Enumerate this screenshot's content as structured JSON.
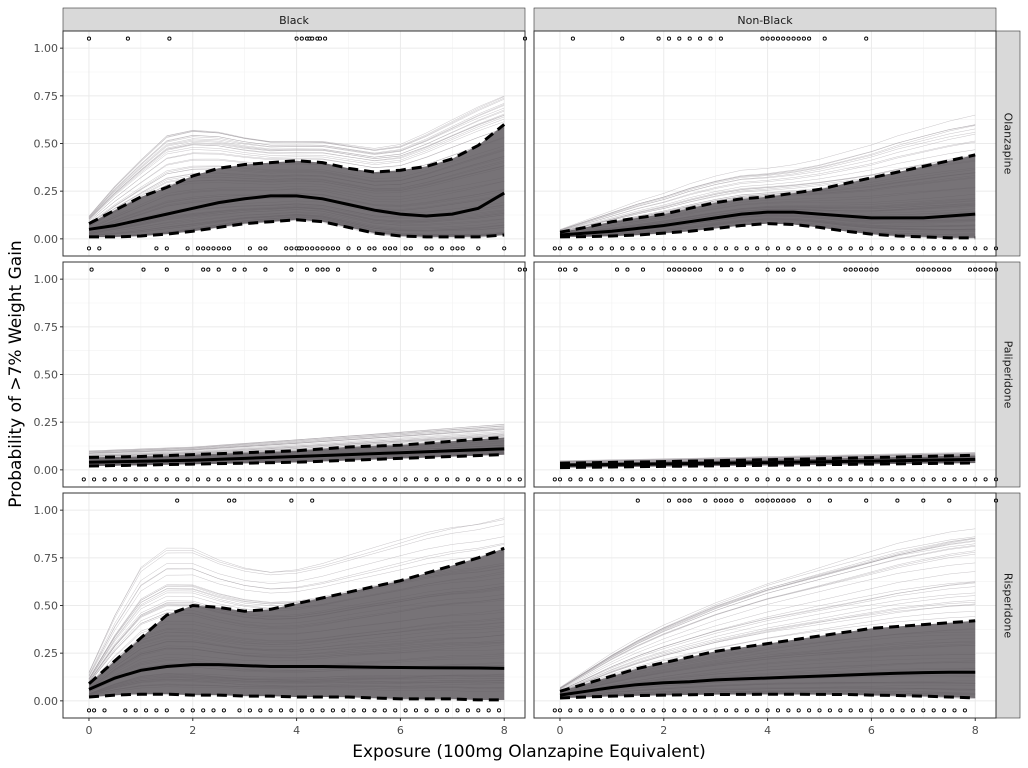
{
  "chart_data": {
    "type": "line",
    "xlabel": "Exposure (100mg Olanzapine Equivalent)",
    "ylabel": "Probability of >7% Weight Gain",
    "xlim": [
      -0.5,
      8.4
    ],
    "ylim": [
      -0.09,
      1.09
    ],
    "x_ticks": [
      0,
      2,
      4,
      6,
      8
    ],
    "y_ticks": [
      0.0,
      0.25,
      0.5,
      0.75,
      1.0
    ],
    "x_tick_labels": [
      "0",
      "2",
      "4",
      "6",
      "8"
    ],
    "y_tick_labels": [
      "0.00",
      "0.25",
      "0.50",
      "0.75",
      "1.00"
    ],
    "columns": [
      "Black",
      "Non-Black"
    ],
    "rows": [
      "Olanzapine",
      "Paliperidone",
      "Risperidone"
    ],
    "grid": true,
    "band_color": "#5f5a5f",
    "line_color": "#000000",
    "panels": [
      {
        "column": "Black",
        "row": "Olanzapine",
        "x": [
          0,
          0.5,
          1,
          1.5,
          2,
          2.5,
          3,
          3.5,
          4,
          4.5,
          5,
          5.5,
          6,
          6.5,
          7,
          7.5,
          8
        ],
        "median": [
          0.05,
          0.07,
          0.1,
          0.13,
          0.16,
          0.19,
          0.21,
          0.225,
          0.225,
          0.21,
          0.18,
          0.15,
          0.13,
          0.12,
          0.13,
          0.16,
          0.24
        ],
        "lower": [
          0.01,
          0.01,
          0.015,
          0.025,
          0.04,
          0.06,
          0.08,
          0.09,
          0.1,
          0.09,
          0.06,
          0.03,
          0.015,
          0.01,
          0.01,
          0.01,
          0.02
        ],
        "upper": [
          0.08,
          0.15,
          0.22,
          0.27,
          0.33,
          0.37,
          0.39,
          0.4,
          0.41,
          0.4,
          0.37,
          0.35,
          0.36,
          0.38,
          0.42,
          0.49,
          0.6
        ],
        "spread_max": [
          0.12,
          0.28,
          0.42,
          0.55,
          0.58,
          0.57,
          0.54,
          0.52,
          0.52,
          0.52,
          0.5,
          0.48,
          0.5,
          0.56,
          0.63,
          0.7,
          0.76
        ],
        "obs_events": [
          0,
          0.75,
          1.55,
          4.0,
          4.1,
          4.2,
          4.25,
          4.3,
          4.4,
          4.45,
          4.55,
          8.4
        ],
        "obs_nonevents": [
          0,
          0.2,
          1.3,
          1.5,
          1.9,
          2.1,
          2.2,
          2.3,
          2.4,
          2.5,
          2.6,
          2.7,
          3.1,
          3.3,
          3.4,
          3.8,
          3.9,
          4.0,
          4.05,
          4.1,
          4.2,
          4.3,
          4.4,
          4.5,
          4.6,
          4.7,
          4.8,
          5.0,
          5.2,
          5.4,
          5.5,
          5.7,
          5.8,
          5.9,
          6.1,
          6.2,
          6.5,
          6.6,
          6.8,
          7.0,
          7.1,
          7.2,
          7.5,
          8.0
        ]
      },
      {
        "column": "Non-Black",
        "row": "Olanzapine",
        "x": [
          0,
          0.5,
          1,
          1.5,
          2,
          2.5,
          3,
          3.5,
          4,
          4.5,
          5,
          5.5,
          6,
          6.5,
          7,
          7.5,
          8
        ],
        "median": [
          0.02,
          0.03,
          0.04,
          0.055,
          0.07,
          0.09,
          0.11,
          0.13,
          0.14,
          0.14,
          0.13,
          0.12,
          0.11,
          0.11,
          0.11,
          0.12,
          0.13
        ],
        "lower": [
          0.01,
          0.012,
          0.015,
          0.02,
          0.03,
          0.04,
          0.055,
          0.07,
          0.08,
          0.075,
          0.06,
          0.04,
          0.025,
          0.015,
          0.01,
          0.005,
          0.005
        ],
        "upper": [
          0.035,
          0.06,
          0.09,
          0.11,
          0.13,
          0.16,
          0.19,
          0.21,
          0.22,
          0.24,
          0.26,
          0.29,
          0.32,
          0.35,
          0.38,
          0.41,
          0.44
        ],
        "spread_max": [
          0.05,
          0.1,
          0.15,
          0.2,
          0.24,
          0.29,
          0.33,
          0.36,
          0.37,
          0.39,
          0.42,
          0.46,
          0.5,
          0.55,
          0.59,
          0.63,
          0.66
        ],
        "obs_events": [
          0.25,
          1.2,
          1.9,
          2.1,
          2.3,
          2.5,
          2.7,
          2.9,
          3.1,
          3.9,
          4.0,
          4.1,
          4.2,
          4.3,
          4.4,
          4.5,
          4.6,
          4.7,
          4.8,
          5.1,
          5.9
        ],
        "obs_nonevents": [
          -0.1,
          0.0,
          0.2,
          0.4,
          0.6,
          0.8,
          1.0,
          1.2,
          1.4,
          1.6,
          1.8,
          2.0,
          2.2,
          2.4,
          2.6,
          2.8,
          3.0,
          3.2,
          3.4,
          3.6,
          3.8,
          4.0,
          4.2,
          4.4,
          4.6,
          4.8,
          5.0,
          5.2,
          5.4,
          5.6,
          5.8,
          6.0,
          6.2,
          6.4,
          6.6,
          6.8,
          7.0,
          7.2,
          7.4,
          7.6,
          7.8,
          8.0,
          8.2,
          8.4
        ]
      },
      {
        "column": "Black",
        "row": "Paliperidone",
        "x": [
          0,
          1,
          2,
          3,
          4,
          5,
          6,
          7,
          8
        ],
        "median": [
          0.04,
          0.045,
          0.05,
          0.06,
          0.07,
          0.08,
          0.09,
          0.1,
          0.11
        ],
        "lower": [
          0.02,
          0.025,
          0.03,
          0.035,
          0.04,
          0.05,
          0.06,
          0.07,
          0.08
        ],
        "upper": [
          0.065,
          0.07,
          0.08,
          0.09,
          0.1,
          0.12,
          0.13,
          0.15,
          0.17
        ],
        "spread_max": [
          0.1,
          0.11,
          0.12,
          0.14,
          0.16,
          0.18,
          0.2,
          0.22,
          0.24
        ],
        "obs_events": [
          0.05,
          1.05,
          1.5,
          2.2,
          2.3,
          2.5,
          2.8,
          3.0,
          3.4,
          3.9,
          4.2,
          4.4,
          4.5,
          4.6,
          4.8,
          5.5,
          6.6,
          8.3,
          8.4
        ],
        "obs_nonevents": [
          -0.1,
          0.1,
          0.3,
          0.5,
          0.7,
          0.9,
          1.1,
          1.3,
          1.5,
          1.7,
          1.9,
          2.1,
          2.3,
          2.5,
          2.7,
          2.9,
          3.1,
          3.3,
          3.5,
          3.7,
          3.9,
          4.1,
          4.3,
          4.5,
          4.7,
          4.9,
          5.1,
          5.3,
          5.5,
          5.7,
          5.9,
          6.1,
          6.3,
          6.5,
          6.7,
          6.9,
          7.1,
          7.3,
          7.5,
          7.7,
          7.9,
          8.1,
          8.3
        ]
      },
      {
        "column": "Non-Black",
        "row": "Paliperidone",
        "x": [
          0,
          1,
          2,
          3,
          4,
          5,
          6,
          7,
          8
        ],
        "median": [
          0.025,
          0.028,
          0.031,
          0.035,
          0.038,
          0.042,
          0.046,
          0.05,
          0.055
        ],
        "lower": [
          0.012,
          0.015,
          0.018,
          0.021,
          0.024,
          0.027,
          0.03,
          0.033,
          0.036
        ],
        "upper": [
          0.035,
          0.039,
          0.043,
          0.048,
          0.053,
          0.058,
          0.064,
          0.07,
          0.077
        ],
        "spread_max": [
          0.05,
          0.055,
          0.06,
          0.066,
          0.072,
          0.078,
          0.084,
          0.09,
          0.095
        ],
        "obs_events": [
          0.0,
          0.1,
          0.3,
          1.1,
          1.3,
          1.6,
          2.1,
          2.2,
          2.3,
          2.4,
          2.5,
          2.6,
          2.7,
          3.1,
          3.3,
          3.5,
          4.0,
          4.2,
          4.3,
          4.5,
          5.5,
          5.6,
          5.7,
          5.8,
          5.9,
          6.0,
          6.1,
          6.9,
          7.0,
          7.1,
          7.2,
          7.3,
          7.4,
          7.5,
          7.9,
          8.0,
          8.1,
          8.2,
          8.3,
          8.4
        ],
        "obs_nonevents": [
          -0.1,
          0.0,
          0.2,
          0.4,
          0.6,
          0.8,
          1.0,
          1.2,
          1.4,
          1.6,
          1.8,
          2.0,
          2.2,
          2.4,
          2.6,
          2.8,
          3.0,
          3.2,
          3.4,
          3.6,
          3.8,
          4.0,
          4.2,
          4.4,
          4.6,
          4.8,
          5.0,
          5.2,
          5.4,
          5.6,
          5.8,
          6.0,
          6.2,
          6.4,
          6.6,
          6.8,
          7.0,
          7.2,
          7.4,
          7.6,
          7.8,
          8.0,
          8.2,
          8.4
        ]
      },
      {
        "column": "Black",
        "row": "Risperidone",
        "x": [
          0,
          0.5,
          1,
          1.5,
          2,
          2.5,
          3,
          3.5,
          4,
          4.5,
          5,
          5.5,
          6,
          6.5,
          7,
          7.5,
          8
        ],
        "median": [
          0.06,
          0.12,
          0.16,
          0.18,
          0.19,
          0.19,
          0.185,
          0.18,
          0.18,
          0.18,
          0.178,
          0.176,
          0.175,
          0.174,
          0.173,
          0.172,
          0.17
        ],
        "lower": [
          0.02,
          0.03,
          0.035,
          0.035,
          0.03,
          0.03,
          0.025,
          0.025,
          0.02,
          0.02,
          0.02,
          0.015,
          0.01,
          0.01,
          0.01,
          0.005,
          0.005
        ],
        "upper": [
          0.09,
          0.21,
          0.33,
          0.45,
          0.5,
          0.49,
          0.47,
          0.48,
          0.51,
          0.54,
          0.57,
          0.6,
          0.63,
          0.67,
          0.71,
          0.75,
          0.8
        ],
        "spread_max": [
          0.15,
          0.45,
          0.7,
          0.8,
          0.8,
          0.74,
          0.7,
          0.68,
          0.69,
          0.72,
          0.76,
          0.8,
          0.84,
          0.88,
          0.91,
          0.93,
          0.96
        ],
        "obs_events": [
          1.7,
          2.7,
          2.8,
          3.9,
          4.3
        ],
        "obs_nonevents": [
          0.0,
          0.1,
          0.3,
          0.7,
          0.9,
          1.1,
          1.3,
          1.5,
          1.8,
          2.0,
          2.2,
          2.4,
          2.6,
          2.9,
          3.1,
          3.3,
          3.5,
          3.7,
          3.9,
          4.1,
          4.3,
          4.5,
          4.7,
          4.9,
          5.1,
          5.3,
          5.5,
          5.7,
          5.9,
          6.1,
          6.3,
          6.5,
          6.7,
          6.9,
          7.1,
          7.3,
          7.5,
          7.7,
          7.9
        ]
      },
      {
        "column": "Non-Black",
        "row": "Risperidone",
        "x": [
          0,
          0.5,
          1,
          1.5,
          2,
          2.5,
          3,
          3.5,
          4,
          4.5,
          5,
          5.5,
          6,
          6.5,
          7,
          7.5,
          8
        ],
        "median": [
          0.03,
          0.05,
          0.07,
          0.085,
          0.095,
          0.1,
          0.11,
          0.115,
          0.12,
          0.125,
          0.13,
          0.135,
          0.14,
          0.145,
          0.148,
          0.15,
          0.15
        ],
        "lower": [
          0.015,
          0.02,
          0.025,
          0.028,
          0.03,
          0.032,
          0.033,
          0.034,
          0.035,
          0.035,
          0.034,
          0.033,
          0.03,
          0.028,
          0.025,
          0.02,
          0.015
        ],
        "upper": [
          0.05,
          0.09,
          0.13,
          0.17,
          0.2,
          0.23,
          0.26,
          0.28,
          0.3,
          0.32,
          0.34,
          0.36,
          0.38,
          0.39,
          0.4,
          0.41,
          0.42
        ],
        "spread_max": [
          0.07,
          0.16,
          0.25,
          0.33,
          0.4,
          0.46,
          0.52,
          0.57,
          0.62,
          0.66,
          0.7,
          0.74,
          0.78,
          0.82,
          0.85,
          0.88,
          0.9
        ],
        "obs_events": [
          1.5,
          2.1,
          2.3,
          2.4,
          2.5,
          2.8,
          3.0,
          3.1,
          3.2,
          3.3,
          3.5,
          3.8,
          3.9,
          4.0,
          4.1,
          4.2,
          4.3,
          4.4,
          4.5,
          4.8,
          5.2,
          5.9,
          6.5,
          7.0,
          7.5,
          8.4
        ],
        "obs_nonevents": [
          -0.1,
          0.0,
          0.2,
          0.4,
          0.6,
          0.8,
          1.0,
          1.2,
          1.4,
          1.6,
          1.8,
          2.0,
          2.2,
          2.4,
          2.6,
          2.8,
          3.0,
          3.2,
          3.4,
          3.6,
          3.8,
          4.0,
          4.2,
          4.4,
          4.6,
          4.8,
          5.0,
          5.2,
          5.4,
          5.6,
          5.8,
          6.0,
          6.2,
          6.4,
          6.6,
          6.8,
          7.0,
          7.2,
          7.4,
          7.6,
          7.8
        ]
      }
    ]
  }
}
